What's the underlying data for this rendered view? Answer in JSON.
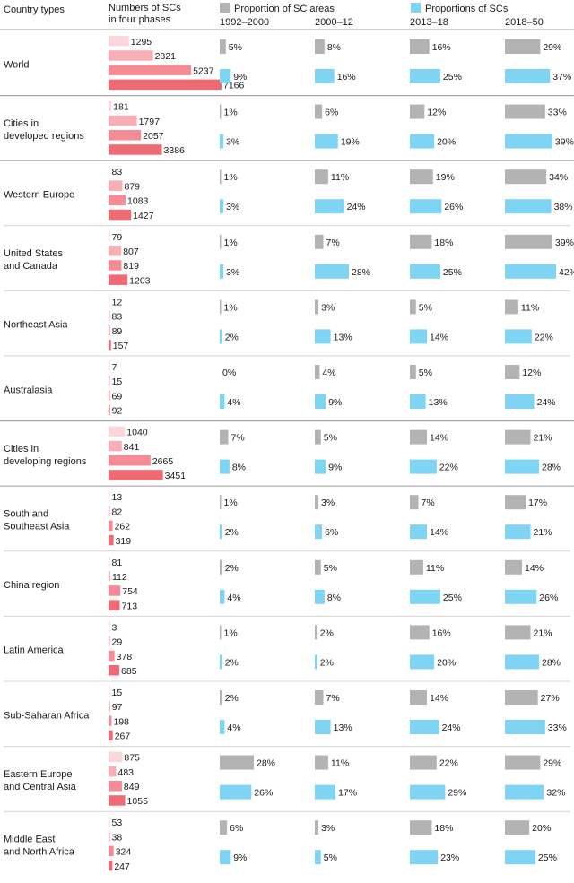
{
  "header": {
    "country_types": "Country types",
    "numbers_title_line1": "Numbers of SCs",
    "numbers_title_line2": "in four phases",
    "legend_areas": "Proportion of SC areas",
    "legend_scs": "Proportions of SCs"
  },
  "colors": {
    "area_bar": "#b3b3b3",
    "sc_bar": "#7fd4f4",
    "count_phase1": "#fbd7dc",
    "count_phase2": "#f8aeb5",
    "count_phase3": "#f58c95",
    "count_phase4": "#ef6a72",
    "separator": "#a8a8a8"
  },
  "chart_data": {
    "type": "bar",
    "phases": [
      "1992–2000",
      "2000–12",
      "2013–18",
      "2018–50"
    ],
    "series": [
      {
        "name": "Numbers of SCs in four phases"
      },
      {
        "name": "Proportion of SC areas"
      },
      {
        "name": "Proportions of SCs"
      }
    ],
    "rows": [
      {
        "label": "World",
        "group_start": false,
        "counts": [
          1295,
          2821,
          5237,
          7166
        ],
        "areas": [
          5,
          8,
          16,
          29
        ],
        "scs": [
          9,
          16,
          25,
          37
        ]
      },
      {
        "label": "Cities in\ndeveloped regions",
        "group_start": true,
        "counts": [
          181,
          1797,
          2057,
          3386
        ],
        "areas": [
          1,
          6,
          12,
          33
        ],
        "scs": [
          3,
          19,
          20,
          39
        ]
      },
      {
        "label": "Western Europe",
        "group_start": true,
        "counts": [
          83,
          879,
          1083,
          1427
        ],
        "areas": [
          1,
          11,
          19,
          34
        ],
        "scs": [
          3,
          24,
          26,
          38
        ]
      },
      {
        "label": "United States\nand Canada",
        "group_start": false,
        "counts": [
          79,
          807,
          819,
          1203
        ],
        "areas": [
          1,
          7,
          18,
          39
        ],
        "scs": [
          3,
          28,
          25,
          42
        ]
      },
      {
        "label": "Northeast Asia",
        "group_start": false,
        "counts": [
          12,
          83,
          89,
          157
        ],
        "areas": [
          1,
          3,
          5,
          11
        ],
        "scs": [
          2,
          13,
          14,
          22
        ]
      },
      {
        "label": "Australasia",
        "group_start": false,
        "counts": [
          7,
          15,
          69,
          92
        ],
        "areas": [
          0,
          4,
          5,
          12
        ],
        "scs": [
          4,
          9,
          13,
          24
        ]
      },
      {
        "label": "Cities in\ndeveloping regions",
        "group_start": true,
        "counts": [
          1040,
          841,
          2665,
          3451
        ],
        "areas": [
          7,
          5,
          14,
          21
        ],
        "scs": [
          8,
          9,
          22,
          28
        ]
      },
      {
        "label": "South and\nSoutheast Asia",
        "group_start": true,
        "counts": [
          13,
          82,
          262,
          319
        ],
        "areas": [
          1,
          3,
          7,
          17
        ],
        "scs": [
          2,
          6,
          14,
          21
        ]
      },
      {
        "label": "China region",
        "group_start": false,
        "counts": [
          81,
          112,
          754,
          713
        ],
        "areas": [
          2,
          5,
          11,
          14
        ],
        "scs": [
          4,
          8,
          25,
          26
        ]
      },
      {
        "label": "Latin America",
        "group_start": false,
        "counts": [
          3,
          29,
          378,
          685
        ],
        "areas": [
          1,
          2,
          16,
          21
        ],
        "scs": [
          2,
          2,
          20,
          28
        ]
      },
      {
        "label": "Sub-Saharan Africa",
        "group_start": false,
        "counts": [
          15,
          97,
          198,
          267
        ],
        "areas": [
          2,
          7,
          14,
          27
        ],
        "scs": [
          4,
          13,
          24,
          33
        ]
      },
      {
        "label": "Eastern Europe\nand Central Asia",
        "group_start": false,
        "counts": [
          875,
          483,
          849,
          1055
        ],
        "areas": [
          28,
          11,
          22,
          29
        ],
        "scs": [
          26,
          17,
          29,
          32
        ]
      },
      {
        "label": "Middle East\nand North Africa",
        "group_start": false,
        "counts": [
          53,
          38,
          324,
          247
        ],
        "areas": [
          6,
          3,
          18,
          20
        ],
        "scs": [
          9,
          5,
          23,
          25
        ]
      }
    ]
  }
}
